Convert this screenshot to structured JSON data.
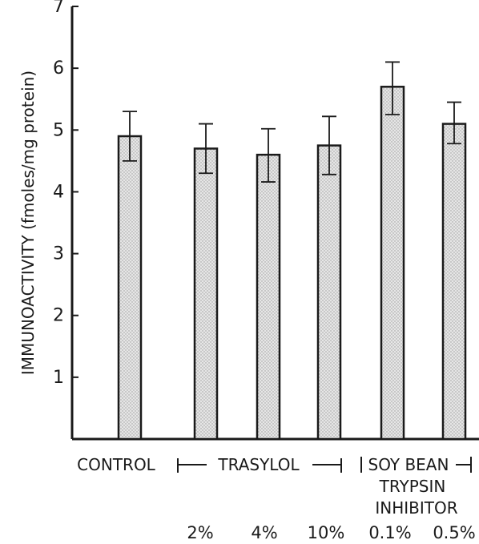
{
  "chart_data": {
    "type": "bar",
    "ylabel": "IMMUNOACTIVITY (fmoles/mg protein)",
    "ylim": [
      0,
      7
    ],
    "yticks": [
      "1",
      "2",
      "3",
      "4",
      "5",
      "6",
      "7"
    ],
    "categories": [
      "CONTROL",
      "2%",
      "4%",
      "10%",
      "0.1%",
      "0.5%"
    ],
    "values": [
      4.9,
      4.7,
      4.6,
      4.75,
      5.7,
      5.1
    ],
    "error_upper": [
      5.3,
      5.1,
      5.02,
      5.22,
      6.1,
      5.45
    ],
    "error_lower": [
      4.5,
      4.3,
      4.16,
      4.28,
      5.25,
      4.78
    ],
    "groups": {
      "control": "CONTROL",
      "trasylol": "TRASYLOL",
      "soy_line1": "SOY BEAN",
      "soy_line2": "TRYPSIN",
      "soy_line3": "INHIBITOR"
    },
    "grid": false,
    "legend": "none",
    "colors": {
      "bar_fill": "#d9d9d9",
      "ink": "#1a1a1a"
    }
  }
}
